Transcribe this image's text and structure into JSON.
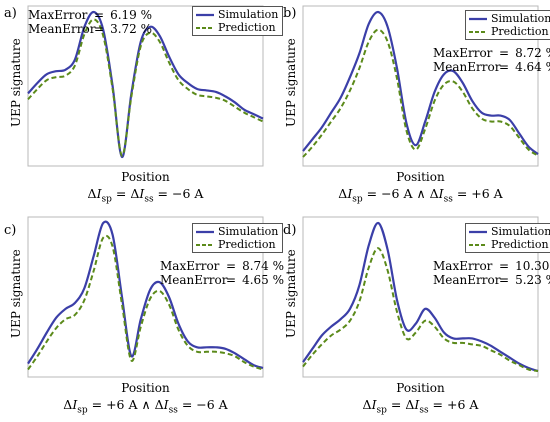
{
  "chart_data": [
    {
      "type": "line",
      "panel_label": "a)",
      "xlabel": "Position",
      "ylabel": "UEP signature",
      "condition": "ΔI_sp = ΔI_ss = −6 A",
      "max_error": "6.19 %",
      "mean_error": "3.72 %",
      "legend_position": "top-right",
      "x": [
        0,
        0.04,
        0.08,
        0.12,
        0.16,
        0.2,
        0.24,
        0.28,
        0.32,
        0.36,
        0.4,
        0.44,
        0.48,
        0.52,
        0.56,
        0.6,
        0.64,
        0.68,
        0.72,
        0.76,
        0.8,
        0.84,
        0.88,
        0.92,
        0.96,
        1
      ],
      "series": [
        {
          "name": "Simulation",
          "values": [
            0.45,
            0.52,
            0.58,
            0.6,
            0.61,
            0.68,
            0.9,
            1.0,
            0.88,
            0.5,
            0.02,
            0.45,
            0.8,
            0.9,
            0.84,
            0.7,
            0.58,
            0.52,
            0.48,
            0.47,
            0.46,
            0.43,
            0.39,
            0.34,
            0.31,
            0.28
          ]
        },
        {
          "name": "Prediction",
          "values": [
            0.41,
            0.48,
            0.54,
            0.56,
            0.57,
            0.64,
            0.85,
            0.95,
            0.84,
            0.48,
            0.03,
            0.43,
            0.77,
            0.86,
            0.8,
            0.66,
            0.54,
            0.48,
            0.44,
            0.43,
            0.42,
            0.4,
            0.36,
            0.32,
            0.29,
            0.26
          ]
        }
      ]
    },
    {
      "type": "line",
      "panel_label": "b)",
      "xlabel": "Position",
      "ylabel": "UEP signature",
      "condition": "ΔI_sp = −6 A ∧ ΔI_ss = +6 A",
      "max_error": "8.72 %",
      "mean_error": "4.64 %",
      "legend_position": "top-right",
      "x": [
        0,
        0.04,
        0.08,
        0.12,
        0.16,
        0.2,
        0.24,
        0.28,
        0.32,
        0.36,
        0.4,
        0.44,
        0.48,
        0.52,
        0.56,
        0.6,
        0.64,
        0.68,
        0.72,
        0.76,
        0.8,
        0.84,
        0.88,
        0.92,
        0.96,
        1
      ],
      "series": [
        {
          "name": "Simulation",
          "values": [
            0.06,
            0.14,
            0.22,
            0.32,
            0.42,
            0.56,
            0.72,
            0.92,
            1.0,
            0.9,
            0.62,
            0.25,
            0.1,
            0.26,
            0.46,
            0.58,
            0.6,
            0.52,
            0.4,
            0.32,
            0.3,
            0.3,
            0.27,
            0.18,
            0.09,
            0.04
          ]
        },
        {
          "name": "Prediction",
          "values": [
            0.02,
            0.09,
            0.17,
            0.26,
            0.35,
            0.47,
            0.62,
            0.8,
            0.88,
            0.8,
            0.55,
            0.2,
            0.07,
            0.21,
            0.4,
            0.51,
            0.53,
            0.46,
            0.35,
            0.28,
            0.26,
            0.26,
            0.23,
            0.15,
            0.07,
            0.03
          ]
        }
      ]
    },
    {
      "type": "line",
      "panel_label": "c)",
      "xlabel": "Position",
      "ylabel": "UEP signature",
      "condition": "ΔI_sp = +6 A ∧ ΔI_ss = −6 A",
      "max_error": "8.74 %",
      "mean_error": "4.65 %",
      "legend_position": "top-right",
      "x": [
        0,
        0.04,
        0.08,
        0.12,
        0.16,
        0.2,
        0.24,
        0.28,
        0.32,
        0.36,
        0.4,
        0.44,
        0.48,
        0.52,
        0.56,
        0.6,
        0.64,
        0.68,
        0.72,
        0.76,
        0.8,
        0.84,
        0.88,
        0.92,
        0.96,
        1
      ],
      "series": [
        {
          "name": "Simulation",
          "values": [
            0.05,
            0.15,
            0.26,
            0.36,
            0.42,
            0.46,
            0.56,
            0.78,
            1.0,
            0.92,
            0.5,
            0.1,
            0.35,
            0.55,
            0.6,
            0.5,
            0.32,
            0.2,
            0.16,
            0.16,
            0.16,
            0.15,
            0.12,
            0.08,
            0.04,
            0.02
          ]
        },
        {
          "name": "Prediction",
          "values": [
            0.01,
            0.1,
            0.2,
            0.29,
            0.35,
            0.38,
            0.48,
            0.68,
            0.9,
            0.84,
            0.45,
            0.07,
            0.3,
            0.49,
            0.54,
            0.45,
            0.28,
            0.17,
            0.13,
            0.13,
            0.13,
            0.12,
            0.1,
            0.06,
            0.03,
            0.01
          ]
        }
      ]
    },
    {
      "type": "line",
      "panel_label": "d)",
      "xlabel": "Position",
      "ylabel": "UEP signature",
      "condition": "ΔI_sp = ΔI_ss = +6 A",
      "max_error": "10.30 %",
      "mean_error": "5.23 %",
      "legend_position": "top-right",
      "x": [
        0,
        0.04,
        0.08,
        0.12,
        0.16,
        0.2,
        0.24,
        0.28,
        0.32,
        0.36,
        0.4,
        0.44,
        0.48,
        0.52,
        0.56,
        0.6,
        0.64,
        0.68,
        0.72,
        0.76,
        0.8,
        0.84,
        0.88,
        0.92,
        0.96,
        1
      ],
      "series": [
        {
          "name": "Simulation",
          "values": [
            0.06,
            0.15,
            0.24,
            0.3,
            0.35,
            0.42,
            0.58,
            0.85,
            1.0,
            0.82,
            0.48,
            0.28,
            0.32,
            0.42,
            0.36,
            0.26,
            0.22,
            0.22,
            0.22,
            0.2,
            0.17,
            0.13,
            0.09,
            0.05,
            0.02,
            0.0
          ]
        },
        {
          "name": "Prediction",
          "values": [
            0.03,
            0.11,
            0.18,
            0.24,
            0.28,
            0.34,
            0.47,
            0.7,
            0.83,
            0.68,
            0.4,
            0.22,
            0.26,
            0.34,
            0.3,
            0.22,
            0.19,
            0.19,
            0.18,
            0.17,
            0.14,
            0.11,
            0.07,
            0.04,
            0.01,
            0.0
          ]
        }
      ]
    }
  ],
  "labels": {
    "max_error": "MaxError",
    "mean_error": "MeanError",
    "equals": "="
  },
  "colors": {
    "simulation": "#3b3fa8",
    "prediction": "#5b8a1a",
    "frame": "#b8b8b8"
  }
}
